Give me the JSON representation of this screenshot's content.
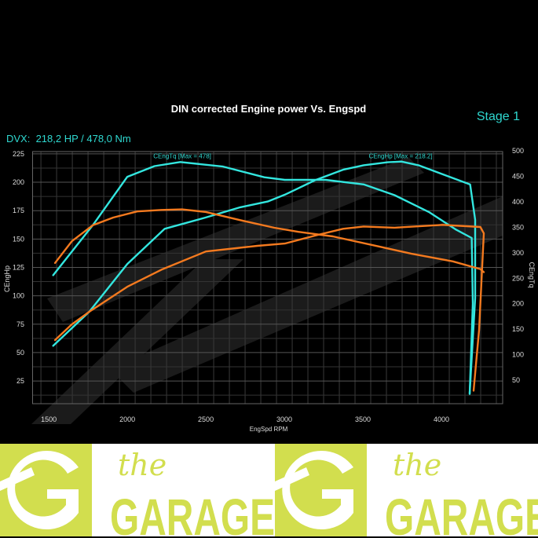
{
  "header": {
    "stage_label": "Stage 1",
    "result_label": "DVX:  218,2 HP / 478,0 Nm"
  },
  "chart_data": {
    "type": "line",
    "title": "DIN corrected Engine power Vs. Engspd",
    "xlabel": "EngSpd RPM",
    "ylabel": "CEngHp",
    "y2label": "CEngTq",
    "xlim": [
      1397,
      4390
    ],
    "ylim": [
      5,
      227
    ],
    "y2lim": [
      0,
      500
    ],
    "xticks": [
      1500,
      2000,
      2500,
      3000,
      3500,
      4000
    ],
    "yticks": [
      25,
      50,
      75,
      100,
      125,
      150,
      175,
      200,
      225
    ],
    "y2ticks": [
      50,
      100,
      150,
      200,
      250,
      300,
      350,
      400,
      450,
      500
    ],
    "grid": true,
    "annotations": [
      {
        "text": "CEngTq [Max = 478]",
        "x": 2350,
        "y2": 490
      },
      {
        "text": "CEngHp [Max = 218.2]",
        "x": 3740,
        "y2": 490
      }
    ],
    "colors": {
      "tuned": "#33e6df",
      "stock": "#f47a1f"
    },
    "series": [
      {
        "key": "tuned_hp",
        "axis": "left",
        "color": "#33e6df",
        "x": [
          1528,
          1758,
          2000,
          2238,
          2500,
          2719,
          2894,
          3003,
          3200,
          3374,
          3505,
          3658,
          3745,
          3854,
          4008,
          4183,
          4215,
          4215,
          4180
        ],
        "y": [
          56,
          86,
          128,
          159,
          169,
          178,
          183,
          189,
          202,
          211,
          215,
          217.6,
          218.2,
          215,
          207,
          198,
          167,
          98,
          14
        ]
      },
      {
        "key": "tuned_tq",
        "axis": "right",
        "color": "#33e6df",
        "x": [
          1528,
          1780,
          2000,
          2173,
          2337,
          2610,
          2872,
          3003,
          3263,
          3505,
          3702,
          3920,
          4095,
          4193,
          4200,
          4180
        ],
        "y": [
          256,
          354,
          449,
          470,
          478,
          469,
          448,
          443,
          443,
          434,
          413,
          380,
          345,
          329,
          200,
          23
        ]
      },
      {
        "key": "stock_hp",
        "axis": "left",
        "color": "#f47a1f",
        "x": [
          1540,
          1648,
          1758,
          2000,
          2217,
          2500,
          2828,
          3003,
          3222,
          3374,
          3505,
          3702,
          4008,
          4248,
          4270,
          4240,
          4205
        ],
        "y": [
          61,
          75,
          86,
          108,
          123,
          139,
          144,
          146,
          154,
          159,
          161,
          160,
          162.5,
          160.6,
          155,
          70,
          16.5
        ]
      },
      {
        "key": "stock_tq",
        "axis": "right",
        "color": "#f47a1f",
        "x": [
          1540,
          1648,
          1780,
          1910,
          2063,
          2217,
          2348,
          2500,
          2719,
          2937,
          3090,
          3309,
          3593,
          3810,
          4073,
          4248,
          4270
        ],
        "y": [
          280,
          323,
          354,
          369,
          381,
          384,
          385,
          380,
          364,
          349,
          341,
          332,
          313,
          298,
          283,
          268,
          262
        ]
      }
    ]
  },
  "banner": {
    "logo_text_small": "the",
    "logo_text_large": "GARAGE",
    "brand_color": "#d2de4e"
  }
}
